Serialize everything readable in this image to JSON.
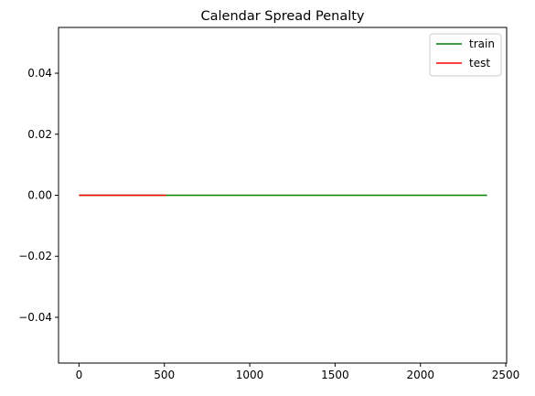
{
  "chart_data": {
    "type": "line",
    "title": "Calendar Spread Penalty",
    "xlabel": "",
    "ylabel": "",
    "xlim": [
      -120,
      2505
    ],
    "ylim": [
      -0.055,
      0.055
    ],
    "x_ticks": [
      0,
      500,
      1000,
      1500,
      2000,
      2500
    ],
    "x_tick_labels": [
      "0",
      "500",
      "1000",
      "1500",
      "2000",
      "2500"
    ],
    "y_ticks": [
      -0.04,
      -0.02,
      0.0,
      0.02,
      0.04
    ],
    "y_tick_labels": [
      "−0.04",
      "−0.02",
      "0.00",
      "0.02",
      "0.04"
    ],
    "grid": false,
    "legend_position": "top-right",
    "series": [
      {
        "name": "train",
        "color": "#008000",
        "x": [
          0,
          2390
        ],
        "y": [
          0,
          0
        ]
      },
      {
        "name": "test",
        "color": "#ff0000",
        "x": [
          0,
          510
        ],
        "y": [
          0,
          0
        ]
      }
    ]
  }
}
